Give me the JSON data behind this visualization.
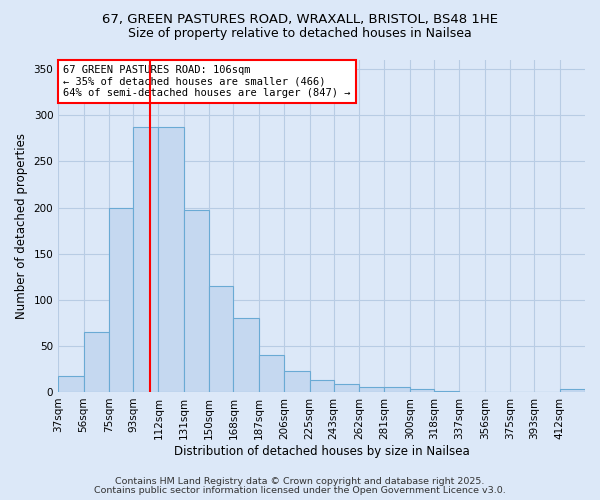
{
  "title1": "67, GREEN PASTURES ROAD, WRAXALL, BRISTOL, BS48 1HE",
  "title2": "Size of property relative to detached houses in Nailsea",
  "xlabel": "Distribution of detached houses by size in Nailsea",
  "ylabel": "Number of detached properties",
  "bins": [
    37,
    56,
    75,
    93,
    112,
    131,
    150,
    168,
    187,
    206,
    225,
    243,
    262,
    281,
    300,
    318,
    337,
    356,
    375,
    393,
    412
  ],
  "bin_labels": [
    "37sqm",
    "56sqm",
    "75sqm",
    "93sqm",
    "112sqm",
    "131sqm",
    "150sqm",
    "168sqm",
    "187sqm",
    "206sqm",
    "225sqm",
    "243sqm",
    "262sqm",
    "281sqm",
    "300sqm",
    "318sqm",
    "337sqm",
    "356sqm",
    "375sqm",
    "393sqm",
    "412sqm"
  ],
  "values": [
    17,
    65,
    200,
    287,
    287,
    197,
    115,
    80,
    40,
    23,
    13,
    9,
    5,
    5,
    3,
    1,
    0,
    0,
    0,
    0,
    3
  ],
  "bar_color": "#c5d8f0",
  "bar_edge_color": "#6aaad4",
  "vline_x": 106,
  "vline_color": "red",
  "annotation_text": "67 GREEN PASTURES ROAD: 106sqm\n← 35% of detached houses are smaller (466)\n64% of semi-detached houses are larger (847) →",
  "annotation_box_color": "white",
  "annotation_box_edge_color": "red",
  "ylim": [
    0,
    360
  ],
  "yticks": [
    0,
    50,
    100,
    150,
    200,
    250,
    300,
    350
  ],
  "footer_text1": "Contains HM Land Registry data © Crown copyright and database right 2025.",
  "footer_text2": "Contains public sector information licensed under the Open Government Licence v3.0.",
  "bg_color": "#dce8f8",
  "grid_color": "#b8cce4",
  "title_fontsize": 9.5,
  "subtitle_fontsize": 9.0,
  "ylabel_fontsize": 8.5,
  "xlabel_fontsize": 8.5,
  "tick_fontsize": 7.5,
  "annotation_fontsize": 7.5,
  "footer_fontsize": 6.8
}
